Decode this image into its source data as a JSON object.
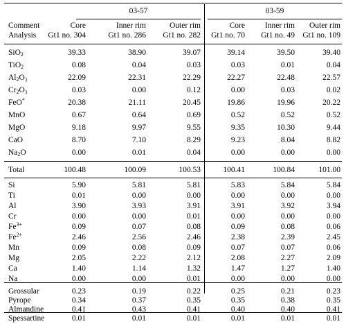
{
  "groups": {
    "left": "03-57",
    "right": "03-59"
  },
  "header": {
    "row1": {
      "label": "Comment",
      "cols": [
        "Core",
        "Inner rim",
        "Outer rim",
        "Core",
        "Inner rim",
        "Outer rim"
      ]
    },
    "row2": {
      "label": "Analysis",
      "cols": [
        "Gt1 no. 304",
        "Gt1 no. 286",
        "Gt1 no. 282",
        "Gt1 no. 70",
        "Gt1 no. 49",
        "Gt1 no. 109"
      ]
    }
  },
  "oxides": [
    {
      "base": "SiO",
      "sub": "2",
      "sup": "",
      "after": "",
      "values": [
        "39.33",
        "38.90",
        "39.07",
        "39.14",
        "39.50",
        "39.40"
      ]
    },
    {
      "base": "TiO",
      "sub": "2",
      "sup": "",
      "after": "",
      "values": [
        "0.08",
        "0.04",
        "0.03",
        "0.03",
        "0.01",
        "0.04"
      ]
    },
    {
      "base": "Al",
      "sub": "2",
      "sup": "",
      "after": "O₃",
      "values": [
        "22.09",
        "22.31",
        "22.29",
        "22.27",
        "22.48",
        "22.57"
      ]
    },
    {
      "base": "Cr",
      "sub": "2",
      "sup": "",
      "after": "O₃",
      "values": [
        "0.03",
        "0.00",
        "0.12",
        "0.00",
        "0.03",
        "0.02"
      ]
    },
    {
      "base": "FeO",
      "sub": "",
      "sup": "*",
      "after": "",
      "values": [
        "20.38",
        "21.11",
        "20.45",
        "19.86",
        "19.96",
        "20.22"
      ]
    },
    {
      "base": "MnO",
      "sub": "",
      "sup": "",
      "after": "",
      "values": [
        "0.67",
        "0.64",
        "0.69",
        "0.52",
        "0.52",
        "0.52"
      ]
    },
    {
      "base": "MgO",
      "sub": "",
      "sup": "",
      "after": "",
      "values": [
        "9.18",
        "9.97",
        "9.55",
        "9.35",
        "10.30",
        "9.44"
      ]
    },
    {
      "base": "CaO",
      "sub": "",
      "sup": "",
      "after": "",
      "values": [
        "8.70",
        "7.10",
        "8.29",
        "9.23",
        "8.04",
        "8.82"
      ]
    },
    {
      "base": "Na",
      "sub": "2",
      "sup": "",
      "after": "O",
      "values": [
        "0.00",
        "0.01",
        "0.04",
        "0.00",
        "0.00",
        "0.00"
      ]
    }
  ],
  "total": {
    "label": "Total",
    "values": [
      "100.48",
      "100.09",
      "100.53",
      "100.41",
      "100.84",
      "101.00"
    ]
  },
  "cations": [
    {
      "base": "Si",
      "sub": "",
      "sup": "",
      "after": "",
      "values": [
        "5.90",
        "5.81",
        "5.81",
        "5.83",
        "5.84",
        "5.84"
      ]
    },
    {
      "base": "Ti",
      "sub": "",
      "sup": "",
      "after": "",
      "values": [
        "0.01",
        "0.00",
        "0.00",
        "0.00",
        "0.00",
        "0.00"
      ]
    },
    {
      "base": "Al",
      "sub": "",
      "sup": "",
      "after": "",
      "values": [
        "3.90",
        "3.93",
        "3.91",
        "3.91",
        "3.92",
        "3.94"
      ]
    },
    {
      "base": "Cr",
      "sub": "",
      "sup": "",
      "after": "",
      "values": [
        "0.00",
        "0.00",
        "0.01",
        "0.00",
        "0.00",
        "0.00"
      ]
    },
    {
      "base": "Fe",
      "sub": "",
      "sup": "3+",
      "after": "",
      "values": [
        "0.09",
        "0.07",
        "0.08",
        "0.09",
        "0.08",
        "0.06"
      ]
    },
    {
      "base": "Fe",
      "sub": "",
      "sup": "2+",
      "after": "",
      "values": [
        "2.46",
        "2.56",
        "2.46",
        "2.38",
        "2.39",
        "2.45"
      ]
    },
    {
      "base": "Mn",
      "sub": "",
      "sup": "",
      "after": "",
      "values": [
        "0.09",
        "0.08",
        "0.09",
        "0.07",
        "0.07",
        "0.06"
      ]
    },
    {
      "base": "Mg",
      "sub": "",
      "sup": "",
      "after": "",
      "values": [
        "2.05",
        "2.22",
        "2.12",
        "2.08",
        "2.27",
        "2.09"
      ]
    },
    {
      "base": "Ca",
      "sub": "",
      "sup": "",
      "after": "",
      "values": [
        "1.40",
        "1.14",
        "1.32",
        "1.47",
        "1.27",
        "1.40"
      ]
    },
    {
      "base": "Na",
      "sub": "",
      "sup": "",
      "after": "",
      "values": [
        "0.00",
        "0.00",
        "0.01",
        "0.00",
        "0.00",
        "0.00"
      ]
    }
  ],
  "endmembers": [
    {
      "base": "Grossular",
      "sub": "",
      "sup": "",
      "after": "",
      "values": [
        "0.23",
        "0.19",
        "0.22",
        "0.25",
        "0.21",
        "0.23"
      ]
    },
    {
      "base": "Pyrope",
      "sub": "",
      "sup": "",
      "after": "",
      "values": [
        "0.34",
        "0.37",
        "0.35",
        "0.35",
        "0.38",
        "0.35"
      ]
    },
    {
      "base": "Almandine",
      "sub": "",
      "sup": "",
      "after": "",
      "values": [
        "0.41",
        "0.43",
        "0.41",
        "0.40",
        "0.40",
        "0.41"
      ]
    },
    {
      "base": "Spessartine",
      "sub": "",
      "sup": "",
      "after": "",
      "values": [
        "0.01",
        "0.01",
        "0.01",
        "0.01",
        "0.01",
        "0.01"
      ]
    }
  ]
}
